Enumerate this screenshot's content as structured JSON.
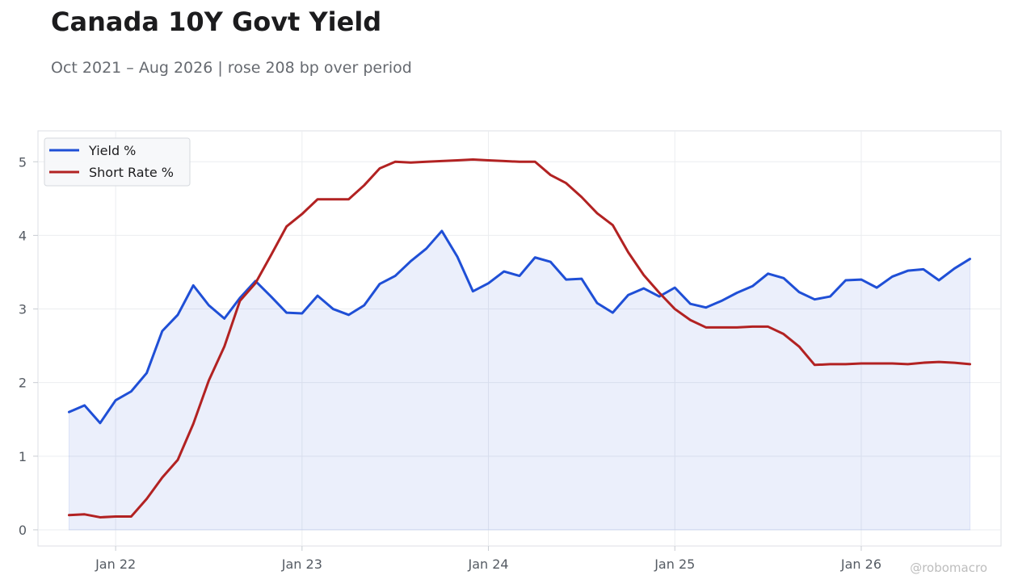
{
  "header": {
    "title": "Canada 10Y Govt Yield",
    "subtitle": "Oct 2021 – Aug 2026 | rose 208 bp over period",
    "watermark": "@robomacro"
  },
  "chart_data": {
    "type": "line",
    "title": "Canada 10Y Govt Yield",
    "subtitle": "Oct 2021 – Aug 2026 | rose 208 bp over period",
    "xlabel": "",
    "ylabel": "",
    "x": [
      "2021-10",
      "2021-11",
      "2021-12",
      "2022-01",
      "2022-02",
      "2022-03",
      "2022-04",
      "2022-05",
      "2022-06",
      "2022-07",
      "2022-08",
      "2022-09",
      "2022-10",
      "2022-11",
      "2022-12",
      "2023-01",
      "2023-02",
      "2023-03",
      "2023-04",
      "2023-05",
      "2023-06",
      "2023-07",
      "2023-08",
      "2023-09",
      "2023-10",
      "2023-11",
      "2023-12",
      "2024-01",
      "2024-02",
      "2024-03",
      "2024-04",
      "2024-05",
      "2024-06",
      "2024-07",
      "2024-08",
      "2024-09",
      "2024-10",
      "2024-11",
      "2024-12",
      "2025-01",
      "2025-02",
      "2025-03",
      "2025-04",
      "2025-05",
      "2025-06",
      "2025-07",
      "2025-08",
      "2025-09",
      "2025-10",
      "2025-11",
      "2025-12",
      "2026-01",
      "2026-02",
      "2026-03",
      "2026-04",
      "2026-05",
      "2026-06",
      "2026-07",
      "2026-08"
    ],
    "series": [
      {
        "name": "Yield %",
        "color": "#1f4fd6",
        "fill": true,
        "values": [
          1.6,
          1.69,
          1.45,
          1.76,
          1.88,
          2.13,
          2.7,
          2.92,
          3.32,
          3.05,
          2.87,
          3.15,
          3.38,
          3.17,
          2.95,
          2.94,
          3.18,
          3.0,
          2.92,
          3.05,
          3.34,
          3.45,
          3.65,
          3.82,
          4.06,
          3.71,
          3.24,
          3.35,
          3.51,
          3.45,
          3.7,
          3.64,
          3.4,
          3.41,
          3.08,
          2.95,
          3.19,
          3.28,
          3.17,
          3.29,
          3.07,
          3.02,
          3.11,
          3.22,
          3.31,
          3.48,
          3.42,
          3.23,
          3.13,
          3.17,
          3.39,
          3.4,
          3.29,
          3.44,
          3.52,
          3.54,
          3.39,
          3.55,
          3.68
        ]
      },
      {
        "name": "Short Rate %",
        "color": "#b22222",
        "fill": false,
        "values": [
          0.2,
          0.21,
          0.17,
          0.18,
          0.18,
          0.42,
          0.71,
          0.95,
          1.44,
          2.03,
          2.49,
          3.11,
          3.35,
          3.73,
          4.12,
          4.29,
          4.49,
          4.49,
          4.49,
          4.68,
          4.91,
          5.0,
          4.99,
          5.0,
          5.01,
          5.02,
          5.03,
          5.02,
          5.01,
          5.0,
          5.0,
          4.82,
          4.71,
          4.52,
          4.3,
          4.14,
          3.77,
          3.46,
          3.22,
          3.0,
          2.85,
          2.75,
          2.75,
          2.75,
          2.76,
          2.76,
          2.66,
          2.49,
          2.24,
          2.25,
          2.25,
          2.26,
          2.26,
          2.26,
          2.25,
          2.27,
          2.28,
          2.27,
          2.25
        ]
      }
    ],
    "ylim": [
      -0.22,
      5.42
    ],
    "yticks": [
      0,
      1,
      2,
      3,
      4,
      5
    ],
    "xticks": [
      {
        "date": "2022-01",
        "label": "Jan 22"
      },
      {
        "date": "2023-01",
        "label": "Jan 23"
      },
      {
        "date": "2024-01",
        "label": "Jan 24"
      },
      {
        "date": "2025-01",
        "label": "Jan 25"
      },
      {
        "date": "2026-01",
        "label": "Jan 26"
      }
    ],
    "xlim": [
      "2021-08",
      "2026-10"
    ],
    "grid": true,
    "legend": "top-left"
  }
}
